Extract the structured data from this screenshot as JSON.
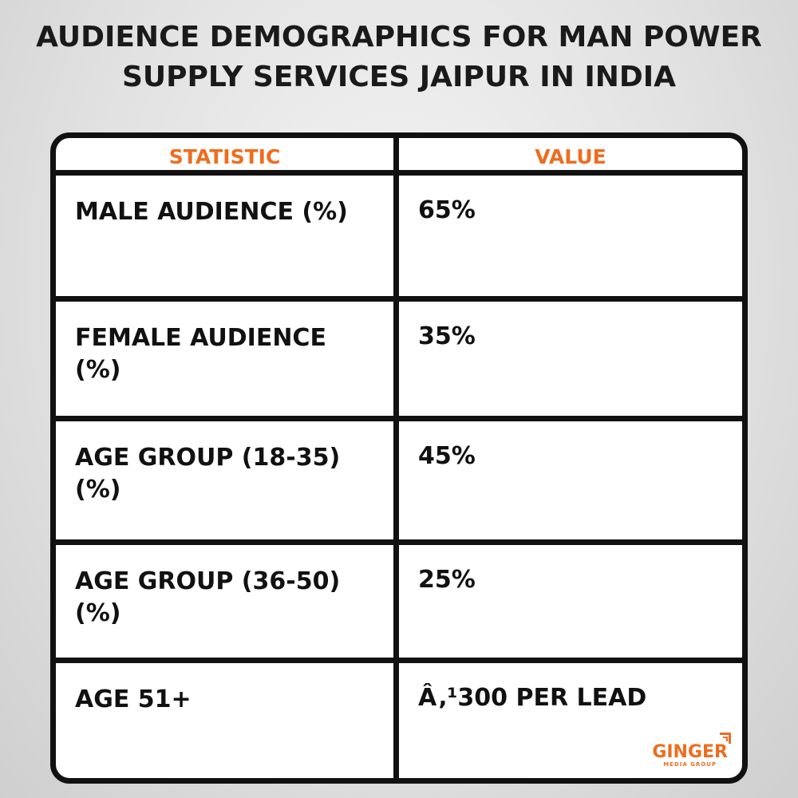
{
  "title": {
    "line1": "AUDIENCE DEMOGRAPHICS FOR MAN POWER",
    "line2": "SUPPLY SERVICES  JAIPUR IN INDIA"
  },
  "table": {
    "headers": [
      "STATISTIC",
      "VALUE"
    ],
    "rows": [
      {
        "statistic": "MALE AUDIENCE (%)",
        "value": "65%"
      },
      {
        "statistic": "FEMALE AUDIENCE (%)",
        "value": "35%"
      },
      {
        "statistic": "AGE GROUP (18-35) (%)",
        "value": "45%"
      },
      {
        "statistic": "AGE GROUP (36-50) (%)",
        "value": "25%"
      },
      {
        "statistic": "AGE 51+",
        "value": "Â‚¹300 PER LEAD"
      }
    ]
  },
  "logo": {
    "name": "GINGER",
    "tagline": "MEDIA GROUP",
    "color": "#ee6d1f"
  },
  "colors": {
    "header_text": "#ee6d1f",
    "border": "#111111",
    "text": "#111111"
  }
}
